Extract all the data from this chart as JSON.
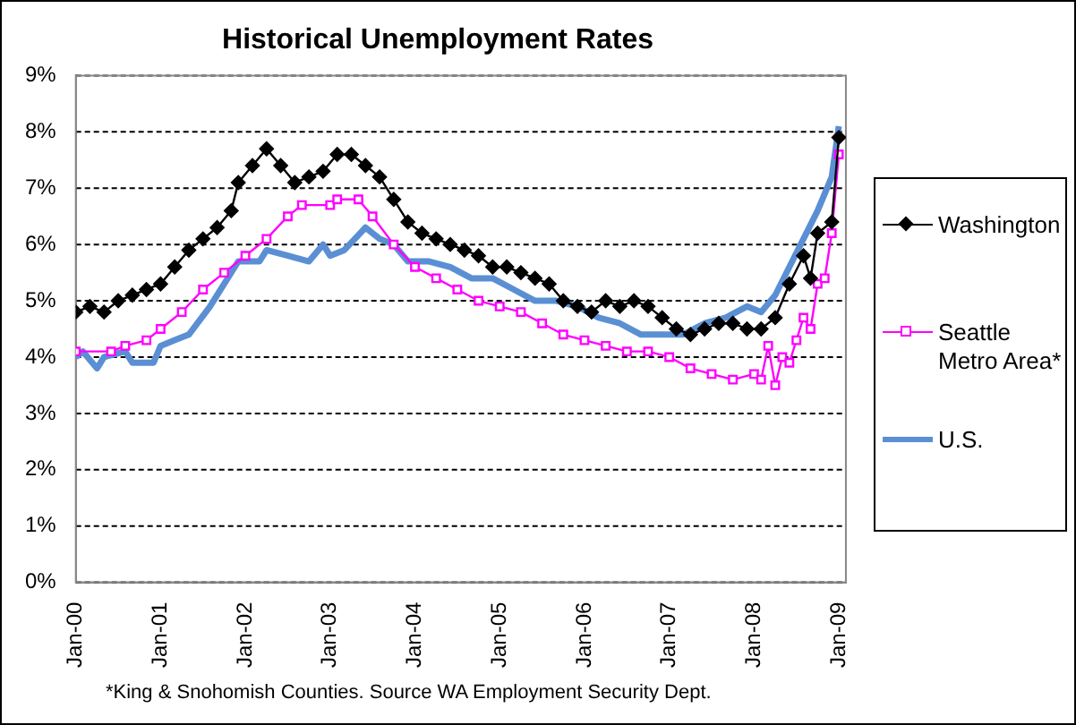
{
  "chart_data": {
    "type": "line",
    "title": "Historical Unemployment Rates",
    "xlim": [
      "2000-01",
      "2009-02"
    ],
    "xticks": [
      {
        "value": "2000-01",
        "label": "Jan-00"
      },
      {
        "value": "2001-01",
        "label": "Jan-01"
      },
      {
        "value": "2002-01",
        "label": "Jan-02"
      },
      {
        "value": "2003-01",
        "label": "Jan-03"
      },
      {
        "value": "2004-01",
        "label": "Jan-04"
      },
      {
        "value": "2005-01",
        "label": "Jan-05"
      },
      {
        "value": "2006-01",
        "label": "Jan-06"
      },
      {
        "value": "2007-01",
        "label": "Jan-07"
      },
      {
        "value": "2008-01",
        "label": "Jan-08"
      },
      {
        "value": "2009-01",
        "label": "Jan-09"
      }
    ],
    "ylim": [
      0,
      9
    ],
    "yticks": [
      {
        "value": 0,
        "label": "0%"
      },
      {
        "value": 1,
        "label": "1%"
      },
      {
        "value": 2,
        "label": "2%"
      },
      {
        "value": 3,
        "label": "3%"
      },
      {
        "value": 4,
        "label": "4%"
      },
      {
        "value": 5,
        "label": "5%"
      },
      {
        "value": 6,
        "label": "6%"
      },
      {
        "value": 7,
        "label": "7%"
      },
      {
        "value": 8,
        "label": "8%"
      },
      {
        "value": 9,
        "label": "9%"
      }
    ],
    "grid": "y",
    "legend": "right",
    "series": [
      {
        "name": "Washington",
        "color": "#000000",
        "marker": "diamond",
        "x": [
          "2000-01",
          "2000-03",
          "2000-05",
          "2000-07",
          "2000-09",
          "2000-11",
          "2001-01",
          "2001-03",
          "2001-05",
          "2001-07",
          "2001-09",
          "2001-11",
          "2001-12",
          "2002-02",
          "2002-04",
          "2002-06",
          "2002-08",
          "2002-10",
          "2002-12",
          "2003-02",
          "2003-04",
          "2003-06",
          "2003-08",
          "2003-10",
          "2003-12",
          "2004-02",
          "2004-04",
          "2004-06",
          "2004-08",
          "2004-10",
          "2004-12",
          "2005-02",
          "2005-04",
          "2005-06",
          "2005-08",
          "2005-10",
          "2005-12",
          "2006-02",
          "2006-04",
          "2006-06",
          "2006-08",
          "2006-10",
          "2006-12",
          "2007-02",
          "2007-04",
          "2007-06",
          "2007-08",
          "2007-10",
          "2007-12",
          "2008-02",
          "2008-04",
          "2008-06",
          "2008-08",
          "2008-09",
          "2008-10",
          "2008-12",
          "2009-01"
        ],
        "values": [
          4.8,
          4.9,
          4.8,
          5.0,
          5.1,
          5.2,
          5.3,
          5.6,
          5.9,
          6.1,
          6.3,
          6.6,
          7.1,
          7.4,
          7.7,
          7.4,
          7.1,
          7.2,
          7.3,
          7.6,
          7.6,
          7.4,
          7.2,
          6.8,
          6.4,
          6.2,
          6.1,
          6.0,
          5.9,
          5.8,
          5.6,
          5.6,
          5.5,
          5.4,
          5.3,
          5.0,
          4.9,
          4.8,
          5.0,
          4.9,
          5.0,
          4.9,
          4.7,
          4.5,
          4.4,
          4.5,
          4.6,
          4.6,
          4.5,
          4.5,
          4.7,
          5.3,
          5.8,
          5.4,
          6.2,
          6.4,
          7.9
        ]
      },
      {
        "name": "Seattle Metro Area*",
        "color": "#ff00ff",
        "marker": "square",
        "x": [
          "2000-01",
          "2000-06",
          "2000-08",
          "2000-11",
          "2001-01",
          "2001-04",
          "2001-07",
          "2001-10",
          "2002-01",
          "2002-04",
          "2002-07",
          "2002-09",
          "2003-01",
          "2003-02",
          "2003-05",
          "2003-07",
          "2003-10",
          "2004-01",
          "2004-04",
          "2004-07",
          "2004-10",
          "2005-01",
          "2005-04",
          "2005-07",
          "2005-10",
          "2006-01",
          "2006-04",
          "2006-07",
          "2006-10",
          "2007-01",
          "2007-04",
          "2007-07",
          "2007-10",
          "2008-01",
          "2008-02",
          "2008-03",
          "2008-04",
          "2008-05",
          "2008-06",
          "2008-07",
          "2008-08",
          "2008-09",
          "2008-10",
          "2008-11",
          "2008-12",
          "2009-01"
        ],
        "values": [
          4.1,
          4.1,
          4.2,
          4.3,
          4.5,
          4.8,
          5.2,
          5.5,
          5.8,
          6.1,
          6.5,
          6.7,
          6.7,
          6.8,
          6.8,
          6.5,
          6.0,
          5.6,
          5.4,
          5.2,
          5.0,
          4.9,
          4.8,
          4.6,
          4.4,
          4.3,
          4.2,
          4.1,
          4.1,
          4.0,
          3.8,
          3.7,
          3.6,
          3.7,
          3.6,
          4.2,
          3.5,
          4.0,
          3.9,
          4.3,
          4.7,
          4.5,
          5.3,
          5.4,
          6.2,
          7.6
        ]
      },
      {
        "name": "U.S.",
        "color": "#5b8fd4",
        "marker": "none",
        "x": [
          "2000-01",
          "2000-02",
          "2000-04",
          "2000-05",
          "2000-08",
          "2000-09",
          "2000-12",
          "2001-01",
          "2001-03",
          "2001-05",
          "2001-08",
          "2001-10",
          "2001-12",
          "2002-03",
          "2002-04",
          "2002-07",
          "2002-10",
          "2002-12",
          "2003-01",
          "2003-03",
          "2003-06",
          "2003-08",
          "2003-10",
          "2003-12",
          "2004-03",
          "2004-06",
          "2004-09",
          "2004-12",
          "2005-03",
          "2005-06",
          "2005-09",
          "2005-12",
          "2006-03",
          "2006-06",
          "2006-09",
          "2006-12",
          "2007-03",
          "2007-06",
          "2007-09",
          "2007-12",
          "2008-02",
          "2008-04",
          "2008-06",
          "2008-08",
          "2008-10",
          "2008-12",
          "2009-01"
        ],
        "values": [
          4.0,
          4.1,
          3.8,
          4.0,
          4.1,
          3.9,
          3.9,
          4.2,
          4.3,
          4.4,
          4.9,
          5.3,
          5.7,
          5.7,
          5.9,
          5.8,
          5.7,
          6.0,
          5.8,
          5.9,
          6.3,
          6.1,
          6.0,
          5.7,
          5.7,
          5.6,
          5.4,
          5.4,
          5.2,
          5.0,
          5.0,
          4.9,
          4.7,
          4.6,
          4.4,
          4.4,
          4.4,
          4.6,
          4.7,
          4.9,
          4.8,
          5.1,
          5.6,
          6.1,
          6.6,
          7.2,
          8.1
        ]
      }
    ],
    "annotations": [
      "*King & Snohomish Counties.  Source WA Employment Security Dept."
    ]
  }
}
